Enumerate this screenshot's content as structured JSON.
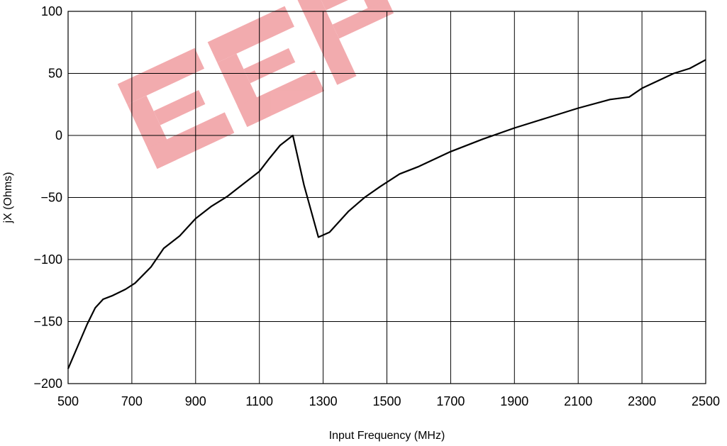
{
  "chart_data": {
    "type": "line",
    "xlabel": "Input Frequency (MHz)",
    "ylabel": "jX (Ohms)",
    "xlim": [
      500,
      2500
    ],
    "ylim": [
      -200,
      100
    ],
    "x_ticks": [
      500,
      700,
      900,
      1100,
      1300,
      1500,
      1700,
      1900,
      2100,
      2300,
      2500
    ],
    "y_ticks": [
      100,
      50,
      0,
      -50,
      -100,
      -150,
      -200
    ],
    "y_tick_labels": [
      "100",
      "50",
      "0",
      "−50",
      "−100",
      "−150",
      "−200"
    ],
    "grid": true,
    "series": [
      {
        "color": "#000000",
        "x": [
          500,
          530,
          560,
          585,
          610,
          640,
          680,
          710,
          760,
          800,
          850,
          900,
          950,
          1000,
          1050,
          1100,
          1130,
          1165,
          1205,
          1240,
          1285,
          1320,
          1380,
          1430,
          1480,
          1540,
          1600,
          1700,
          1800,
          1900,
          2000,
          2100,
          2200,
          2260,
          2300,
          2350,
          2400,
          2450,
          2500
        ],
        "y": [
          -188,
          -170,
          -152,
          -139,
          -132,
          -129,
          -124,
          -119,
          -106,
          -91,
          -81,
          -67,
          -57,
          -49,
          -39,
          -29,
          -19,
          -8,
          0,
          -40,
          -82,
          -78,
          -61,
          -50,
          -41,
          -31,
          -25,
          -13,
          -3,
          6,
          14,
          22,
          29,
          31,
          38,
          44,
          50,
          54,
          61
        ]
      }
    ]
  },
  "watermark": {
    "color": "#e4464e"
  }
}
